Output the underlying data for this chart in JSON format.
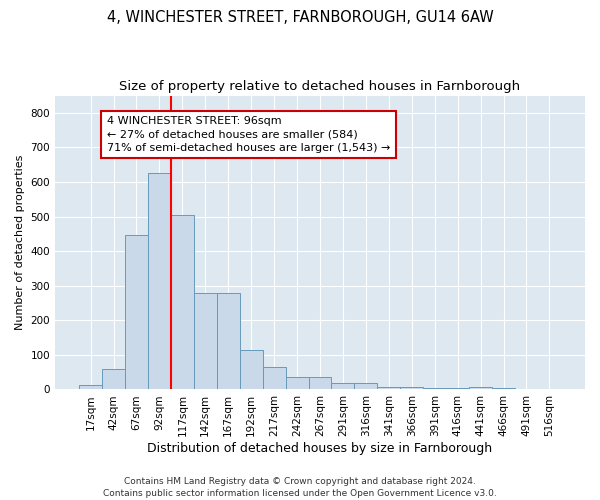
{
  "title": "4, WINCHESTER STREET, FARNBOROUGH, GU14 6AW",
  "subtitle": "Size of property relative to detached houses in Farnborough",
  "xlabel": "Distribution of detached houses by size in Farnborough",
  "ylabel": "Number of detached properties",
  "categories": [
    "17sqm",
    "42sqm",
    "67sqm",
    "92sqm",
    "117sqm",
    "142sqm",
    "167sqm",
    "192sqm",
    "217sqm",
    "242sqm",
    "267sqm",
    "291sqm",
    "316sqm",
    "341sqm",
    "366sqm",
    "391sqm",
    "416sqm",
    "441sqm",
    "466sqm",
    "491sqm",
    "516sqm"
  ],
  "values": [
    12,
    58,
    448,
    625,
    505,
    280,
    280,
    115,
    65,
    37,
    37,
    20,
    20,
    8,
    8,
    4,
    4,
    7,
    4,
    0,
    2
  ],
  "bar_color": "#c9d9ea",
  "bar_edge_color": "#6699bb",
  "red_line_index": 3,
  "annotation_text": "4 WINCHESTER STREET: 96sqm\n← 27% of detached houses are smaller (584)\n71% of semi-detached houses are larger (1,543) →",
  "annotation_box_facecolor": "#ffffff",
  "annotation_box_edgecolor": "#cc0000",
  "ylim": [
    0,
    850
  ],
  "yticks": [
    0,
    100,
    200,
    300,
    400,
    500,
    600,
    700,
    800
  ],
  "footer_line1": "Contains HM Land Registry data © Crown copyright and database right 2024.",
  "footer_line2": "Contains public sector information licensed under the Open Government Licence v3.0.",
  "bg_color": "#dde8f0",
  "fig_bg_color": "#ffffff",
  "title_fontsize": 10.5,
  "subtitle_fontsize": 9.5,
  "ylabel_fontsize": 8,
  "xlabel_fontsize": 9,
  "tick_fontsize": 7.5,
  "footer_fontsize": 6.5,
  "annot_fontsize": 8
}
